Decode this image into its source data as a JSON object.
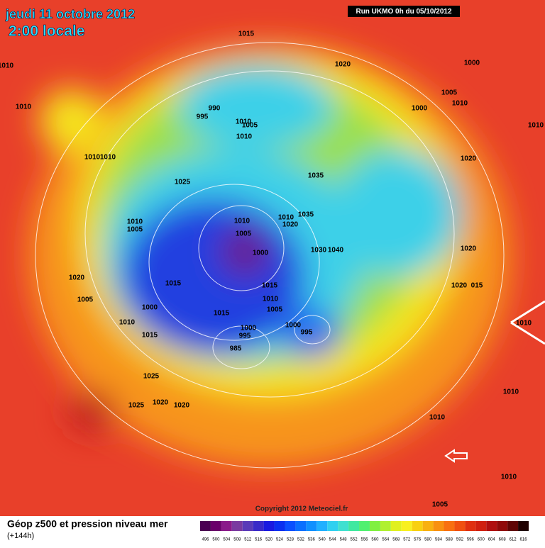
{
  "header": {
    "date": "jeudi 11 octobre 2012",
    "time": "2:00 locale",
    "run": "Run UKMO 0h du 05/10/2012"
  },
  "map": {
    "isobar_labels": [
      1015,
      1020,
      1000,
      1010,
      1010,
      1005,
      1010,
      990,
      995,
      1000,
      1010,
      1005,
      1010,
      1010,
      1010,
      1010,
      1020,
      1035,
      1025,
      1010,
      1005,
      1010,
      1005,
      1010,
      1035,
      1020,
      1000,
      1030,
      1040,
      1020,
      1020,
      1015,
      1015,
      1020,
      "015",
      1010,
      1005,
      1015,
      1000,
      1005,
      1010,
      1015,
      1000,
      995,
      1000,
      995,
      985,
      1025,
      1025,
      1020,
      1020,
      1010,
      1010,
      1010,
      1005,
      1010
    ],
    "copyright": "Copyright 2012 Meteociel.fr"
  },
  "legend": {
    "title": "Géop z500 et pression niveau mer",
    "subtitle": "(+144h)",
    "scale": [
      496,
      500,
      504,
      508,
      512,
      516,
      520,
      524,
      528,
      532,
      536,
      540,
      544,
      548,
      552,
      556,
      560,
      564,
      568,
      572,
      576,
      580,
      584,
      588,
      592,
      596,
      600,
      604,
      608,
      612,
      616
    ],
    "colors": [
      "#4b0052",
      "#6a006a",
      "#8a1a8a",
      "#7a3aa0",
      "#5a3ab8",
      "#3a2ac8",
      "#1a1ae0",
      "#0a30f0",
      "#0a50ff",
      "#0a70ff",
      "#1090ff",
      "#20b0ff",
      "#30d0f0",
      "#40e0d0",
      "#40e8a0",
      "#50f070",
      "#80f040",
      "#b0f030",
      "#e0f020",
      "#f8f020",
      "#f8d010",
      "#f8b010",
      "#f89010",
      "#f87010",
      "#f05010",
      "#e03010",
      "#d02010",
      "#b01010",
      "#900a0a",
      "#600505",
      "#200000"
    ]
  }
}
